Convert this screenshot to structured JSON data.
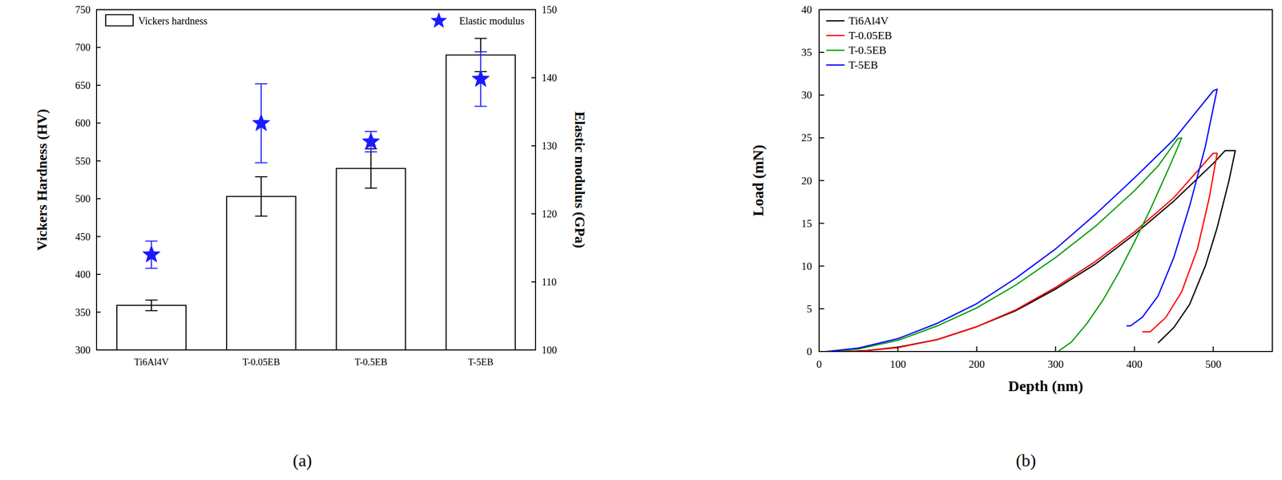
{
  "chart_data": [
    {
      "type": "bar",
      "panel_label": "(a)",
      "categories": [
        "Ti6Al4V",
        "T-0.05EB",
        "T-0.5EB",
        "T-5EB"
      ],
      "y_label": "Vickers Hardness (HV)",
      "y2_label": "Elastic modulus (GPa)",
      "ylim": [
        300,
        750
      ],
      "yticks": [
        300,
        350,
        400,
        450,
        500,
        550,
        600,
        650,
        700,
        750
      ],
      "y2lim": [
        100,
        150
      ],
      "y2ticks": [
        100,
        110,
        120,
        130,
        140,
        150
      ],
      "legend": "top",
      "series": [
        {
          "name": "Vickers hardness",
          "type": "bar",
          "color": "#ffffff",
          "values": [
            359,
            503,
            540,
            690
          ],
          "errors": [
            7,
            26,
            26,
            22
          ]
        },
        {
          "name": "Elastic modulus",
          "type": "scatter",
          "marker": "star",
          "axis": "y2",
          "color": "#1a1aff",
          "values": [
            114,
            133.3,
            130.6,
            139.8
          ],
          "errors": [
            2,
            5.8,
            1.5,
            4
          ]
        }
      ]
    },
    {
      "type": "line",
      "panel_label": "(b)",
      "x_label": "Depth (nm)",
      "y_label": "Load (mN)",
      "xlim": [
        0,
        575
      ],
      "xticks": [
        0,
        100,
        200,
        300,
        400,
        500
      ],
      "ylim": [
        0,
        40
      ],
      "yticks": [
        0,
        5,
        10,
        15,
        20,
        25,
        30,
        35,
        40
      ],
      "legend": "upper left",
      "series": [
        {
          "name": "Ti6Al4V",
          "color": "#000000",
          "x": [
            30,
            60,
            100,
            150,
            200,
            250,
            300,
            350,
            400,
            450,
            500,
            515,
            528,
            520,
            505,
            490,
            470,
            450,
            430
          ],
          "values": [
            0,
            0.1,
            0.5,
            1.4,
            2.9,
            4.8,
            7.3,
            10.2,
            13.7,
            17.6,
            22,
            23.5,
            23.5,
            20,
            14.5,
            10,
            5.5,
            2.8,
            1.0
          ]
        },
        {
          "name": "T-0.05EB",
          "color": "#ff0000",
          "x": [
            35,
            60,
            100,
            150,
            200,
            250,
            300,
            350,
            400,
            450,
            500,
            505,
            495,
            480,
            460,
            440,
            420,
            410
          ],
          "values": [
            0,
            0.1,
            0.45,
            1.4,
            2.9,
            4.9,
            7.5,
            10.5,
            14,
            18,
            23.2,
            23.2,
            18,
            12,
            7,
            4,
            2.3,
            2.3
          ]
        },
        {
          "name": "T-0.5EB",
          "color": "#00a000",
          "x": [
            10,
            50,
            100,
            150,
            200,
            250,
            300,
            350,
            400,
            430,
            455,
            460,
            450,
            440,
            420,
            400,
            380,
            360,
            340,
            320,
            303
          ],
          "values": [
            0,
            0.3,
            1.3,
            3,
            5.1,
            7.8,
            11,
            14.6,
            18.8,
            21.7,
            24.9,
            25,
            22.8,
            20.7,
            16.6,
            12.8,
            9.2,
            6.0,
            3.3,
            1.1,
            0
          ]
        },
        {
          "name": "T-5EB",
          "color": "#0000ff",
          "x": [
            10,
            50,
            100,
            150,
            200,
            250,
            300,
            350,
            400,
            450,
            500,
            505,
            490,
            470,
            450,
            430,
            410,
            395,
            390
          ],
          "values": [
            0,
            0.4,
            1.5,
            3.3,
            5.6,
            8.6,
            12,
            16,
            20.3,
            24.8,
            30.5,
            30.7,
            24,
            17,
            11,
            6.5,
            4,
            3,
            3
          ]
        }
      ]
    }
  ]
}
